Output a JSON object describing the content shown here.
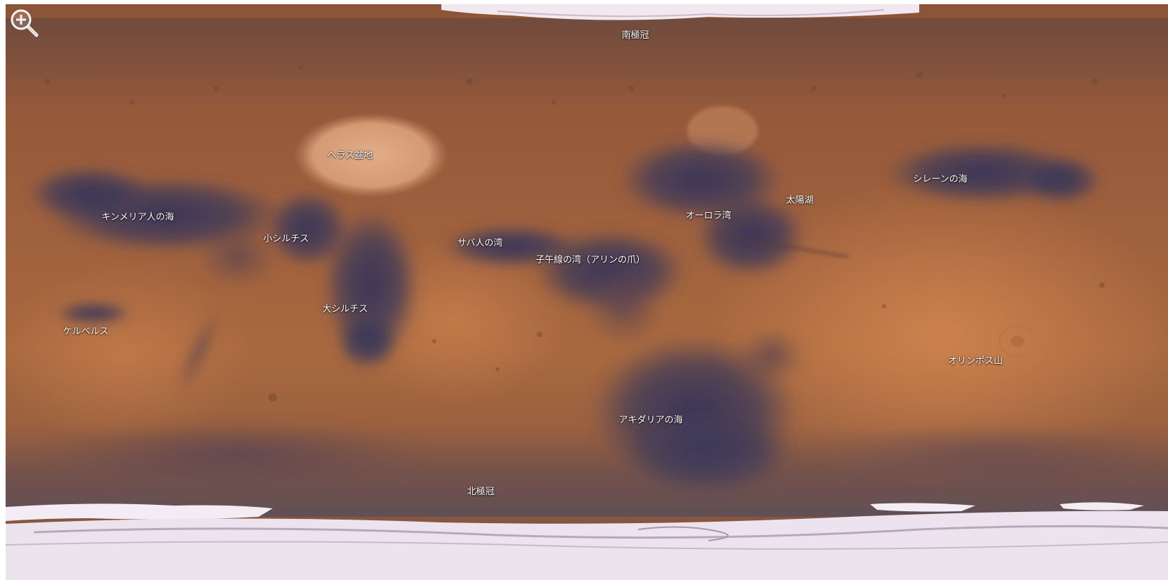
{
  "map": {
    "colors": {
      "base": "#9a5b3a",
      "dark_albedo": "#3f3f5d",
      "highland": "#a66a45",
      "bright": "#dca27c",
      "polar_ice": "#f4eef6"
    },
    "zoom_control": {
      "icon": "zoom-in-magnifier-icon"
    },
    "labels": {
      "south_polar_cap": "南極冠",
      "hellas_basin": "ヘラス盆地",
      "mare_sirenum": "シレーンの海",
      "solis_lacus": "太陽湖",
      "aurorae_sinus": "オーロラ湾",
      "mare_cimmerium": "キンメリア人の海",
      "syrtis_minor": "小シルチス",
      "sinus_sabaeus": "サバ人の湾",
      "sinus_meridiani": "子午線の湾（アリンの爪）",
      "syrtis_major": "大シルチス",
      "cerberus": "ケルベルス",
      "olympus_mons": "オリンポス山",
      "mare_acidalium": "アキダリアの海",
      "north_polar_cap": "北極冠"
    }
  }
}
